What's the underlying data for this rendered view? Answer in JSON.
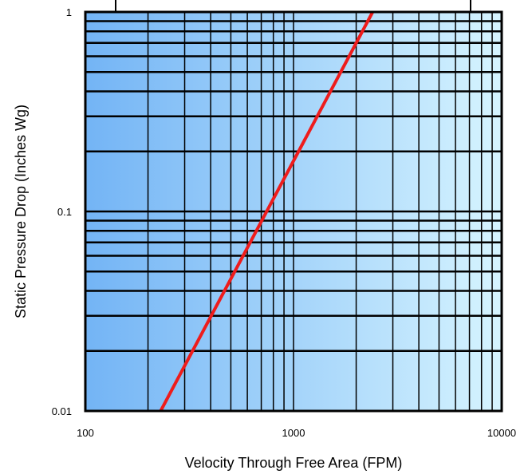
{
  "chart_data": {
    "type": "line",
    "title": "",
    "xlabel": "Velocity Through Free Area (FPM)",
    "ylabel": "Static Pressure Drop (Inches Wg)",
    "x_scale": "log",
    "y_scale": "log",
    "xlim": [
      100,
      10000
    ],
    "ylim": [
      0.01,
      1
    ],
    "x_ticks": [
      "100",
      "1000",
      "10000"
    ],
    "y_ticks": [
      "0.01",
      "0.1",
      "1"
    ],
    "grid": true,
    "legend": "top-center box, text clipped by the top edge",
    "series": [
      {
        "x": [
          230,
          2400
        ],
        "y": [
          0.01,
          1
        ],
        "color": "#ee1c1c"
      }
    ]
  },
  "colors": {
    "plot_bg_left": "#73b4f5",
    "plot_bg_right": "#d6f4ff",
    "grid": "#000000",
    "line": "#ee1c1c"
  }
}
